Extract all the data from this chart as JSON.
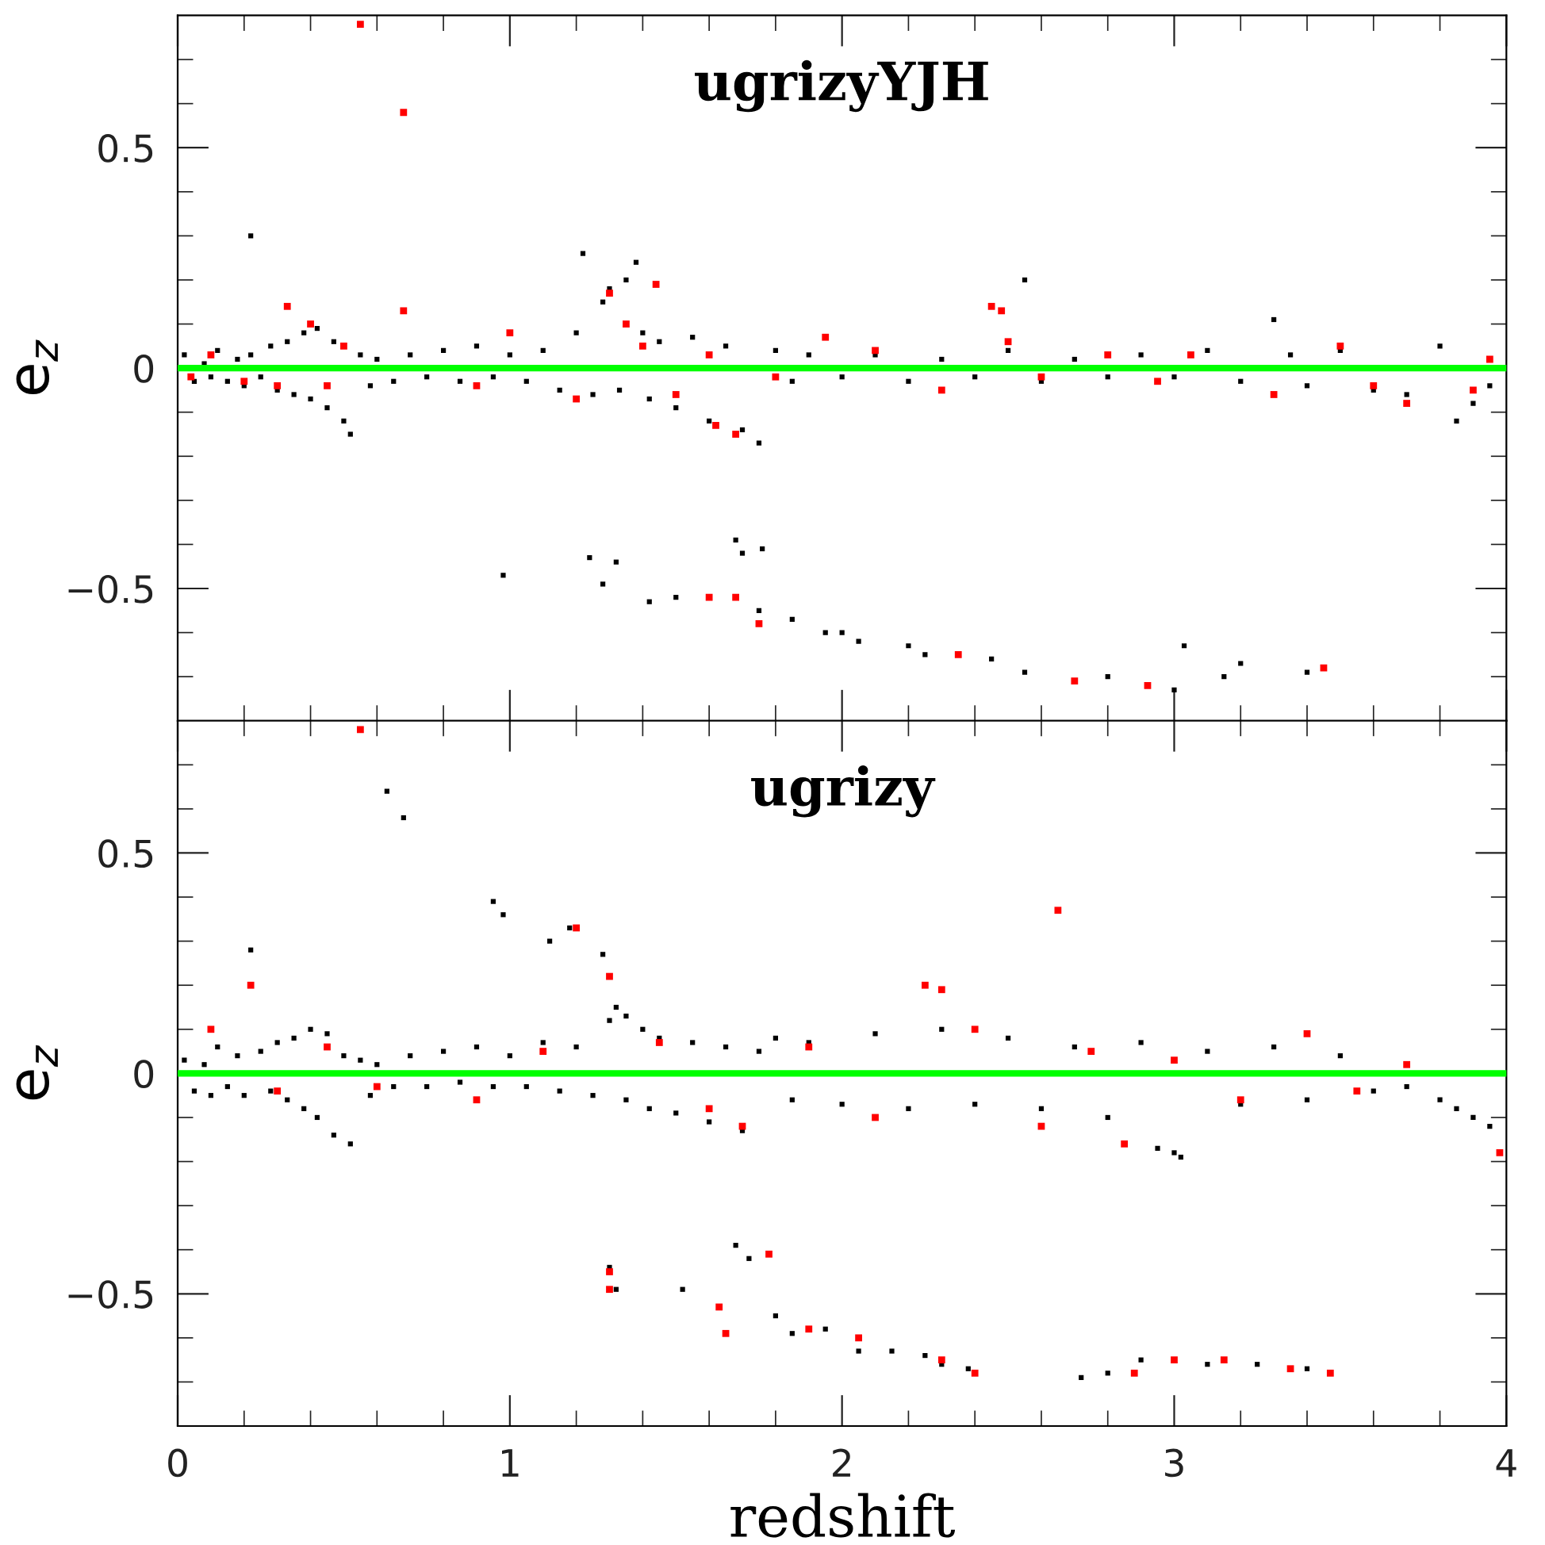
{
  "chart_data": [
    {
      "type": "scatter",
      "title": "ugrizyYJH",
      "ylabel": "e$_{z}$",
      "xlim": [
        0,
        4
      ],
      "ylim": [
        -0.8,
        0.8
      ],
      "xticks": [
        0,
        {
          "value": 0.2,
          "label": null
        },
        {
          "value": 0.4,
          "label": null
        },
        {
          "value": 0.6,
          "label": null
        },
        {
          "value": 0.8,
          "label": null
        },
        1,
        {
          "value": 1.2,
          "label": null
        },
        {
          "value": 1.4,
          "label": null
        },
        {
          "value": 1.6,
          "label": null
        },
        {
          "value": 1.8,
          "label": null
        },
        2,
        {
          "value": 2.2,
          "label": null
        },
        {
          "value": 2.4,
          "label": null
        },
        {
          "value": 2.6,
          "label": null
        },
        {
          "value": 2.8,
          "label": null
        },
        3,
        {
          "value": 3.2,
          "label": null
        },
        {
          "value": 3.4,
          "label": null
        },
        {
          "value": 3.6,
          "label": null
        },
        {
          "value": 3.8,
          "label": null
        },
        4
      ],
      "yticks": [
        {
          "value": -0.7,
          "label": null
        },
        {
          "value": -0.6,
          "label": null
        },
        {
          "value": -0.5,
          "label": "−0.5"
        },
        {
          "value": -0.4,
          "label": null
        },
        {
          "value": -0.3,
          "label": null
        },
        {
          "value": -0.2,
          "label": null
        },
        {
          "value": -0.1,
          "label": null
        },
        0,
        {
          "value": 0.1,
          "label": null
        },
        {
          "value": 0.2,
          "label": null
        },
        {
          "value": 0.3,
          "label": null
        },
        {
          "value": 0.4,
          "label": null
        },
        0.5,
        {
          "value": 0.6,
          "label": null
        },
        {
          "value": 0.7,
          "label": null
        }
      ],
      "tick_labels": "y",
      "marker": "square",
      "grid": false,
      "legend": false,
      "ref_lines": [
        {
          "axis": "y",
          "value": 0,
          "label": null,
          "color": "#00ff00"
        }
      ],
      "series": [
        {
          "color": "#000000",
          "x": [
            0.02,
            0.05,
            0.08,
            0.1,
            0.12,
            0.15,
            0.18,
            0.2,
            0.22,
            0.25,
            0.28,
            0.3,
            0.33,
            0.35,
            0.38,
            0.4,
            0.42,
            0.45,
            0.47,
            0.5,
            0.52,
            0.55,
            0.58,
            0.6,
            0.65,
            0.7,
            0.75,
            0.8,
            0.85,
            0.9,
            0.95,
            1.0,
            1.05,
            1.1,
            1.15,
            1.2,
            1.22,
            1.25,
            1.28,
            1.3,
            1.33,
            1.35,
            1.38,
            1.4,
            1.42,
            1.45,
            1.5,
            1.55,
            1.6,
            1.65,
            1.7,
            1.75,
            1.8,
            1.85,
            1.9,
            2.0,
            2.1,
            2.2,
            2.3,
            2.4,
            2.5,
            2.55,
            2.6,
            2.7,
            2.8,
            2.9,
            3.0,
            3.1,
            3.2,
            3.3,
            3.35,
            3.4,
            3.5,
            3.6,
            3.7,
            3.8,
            3.85,
            3.9,
            3.95,
            0.22,
            0.98,
            1.24,
            1.28,
            1.32,
            1.42,
            1.5,
            1.68,
            1.7,
            1.76,
            1.75,
            1.85,
            1.95,
            2.0,
            2.05,
            2.2,
            2.25,
            2.45,
            2.55,
            2.8,
            3.0,
            3.03,
            3.15,
            3.2,
            3.4
          ],
          "values": [
            0.03,
            -0.03,
            0.01,
            -0.02,
            0.04,
            -0.03,
            0.02,
            -0.04,
            0.03,
            -0.02,
            0.05,
            -0.05,
            0.06,
            -0.06,
            0.08,
            -0.07,
            0.09,
            -0.09,
            0.06,
            -0.12,
            -0.15,
            0.03,
            -0.04,
            0.02,
            -0.03,
            0.03,
            -0.02,
            0.04,
            -0.03,
            0.05,
            -0.02,
            0.03,
            -0.03,
            0.04,
            -0.05,
            0.08,
            0.26,
            -0.06,
            0.15,
            0.18,
            -0.05,
            0.2,
            0.24,
            0.08,
            -0.07,
            0.06,
            -0.09,
            0.07,
            -0.12,
            0.05,
            -0.14,
            -0.17,
            0.04,
            -0.03,
            0.03,
            -0.02,
            0.03,
            -0.03,
            0.02,
            -0.02,
            0.04,
            0.2,
            -0.03,
            0.02,
            -0.02,
            0.03,
            -0.02,
            0.04,
            -0.03,
            0.11,
            0.03,
            -0.04,
            0.04,
            -0.05,
            -0.06,
            0.05,
            -0.12,
            -0.08,
            -0.04,
            0.3,
            -0.47,
            -0.43,
            -0.49,
            -0.44,
            -0.53,
            -0.52,
            -0.39,
            -0.42,
            -0.41,
            -0.55,
            -0.57,
            -0.6,
            -0.6,
            -0.62,
            -0.63,
            -0.65,
            -0.66,
            -0.69,
            -0.7,
            -0.73,
            -0.63,
            -0.7,
            -0.67,
            -0.69
          ]
        },
        {
          "color": "#ff0000",
          "x": [
            0.55,
            0.68,
            0.68,
            0.33,
            0.4,
            0.45,
            0.1,
            0.2,
            0.5,
            0.3,
            0.9,
            1.0,
            1.2,
            1.3,
            1.35,
            1.4,
            1.44,
            1.5,
            1.6,
            1.62,
            1.68,
            1.8,
            1.95,
            2.1,
            2.3,
            2.5,
            2.6,
            2.45,
            2.48,
            2.8,
            2.95,
            3.05,
            3.3,
            3.5,
            3.6,
            3.7,
            3.9,
            3.95,
            1.6,
            1.68,
            1.75,
            2.35,
            2.7,
            2.92,
            3.45,
            0.04
          ],
          "values": [
            0.78,
            0.58,
            0.13,
            0.14,
            0.1,
            -0.04,
            0.03,
            -0.03,
            0.05,
            -0.04,
            -0.04,
            0.08,
            -0.07,
            0.17,
            0.1,
            0.05,
            0.19,
            -0.06,
            0.03,
            -0.13,
            -0.15,
            -0.02,
            0.07,
            0.04,
            -0.05,
            0.06,
            -0.02,
            0.14,
            0.13,
            0.03,
            -0.03,
            0.03,
            -0.06,
            0.05,
            -0.04,
            -0.08,
            -0.05,
            0.02,
            -0.52,
            -0.52,
            -0.58,
            -0.65,
            -0.71,
            -0.72,
            -0.68,
            -0.02
          ]
        }
      ]
    },
    {
      "type": "scatter",
      "title": "ugrizy",
      "xlabel": "redshift",
      "ylabel": "e$_{z}$",
      "xlim": [
        0,
        4
      ],
      "ylim": [
        -0.8,
        0.8
      ],
      "xticks": [
        0,
        {
          "value": 0.2,
          "label": null
        },
        {
          "value": 0.4,
          "label": null
        },
        {
          "value": 0.6,
          "label": null
        },
        {
          "value": 0.8,
          "label": null
        },
        1,
        {
          "value": 1.2,
          "label": null
        },
        {
          "value": 1.4,
          "label": null
        },
        {
          "value": 1.6,
          "label": null
        },
        {
          "value": 1.8,
          "label": null
        },
        2,
        {
          "value": 2.2,
          "label": null
        },
        {
          "value": 2.4,
          "label": null
        },
        {
          "value": 2.6,
          "label": null
        },
        {
          "value": 2.8,
          "label": null
        },
        3,
        {
          "value": 3.2,
          "label": null
        },
        {
          "value": 3.4,
          "label": null
        },
        {
          "value": 3.6,
          "label": null
        },
        {
          "value": 3.8,
          "label": null
        },
        4
      ],
      "yticks": [
        {
          "value": -0.7,
          "label": null
        },
        {
          "value": -0.6,
          "label": null
        },
        {
          "value": -0.5,
          "label": "−0.5"
        },
        {
          "value": -0.4,
          "label": null
        },
        {
          "value": -0.3,
          "label": null
        },
        {
          "value": -0.2,
          "label": null
        },
        {
          "value": -0.1,
          "label": null
        },
        0,
        {
          "value": 0.1,
          "label": null
        },
        {
          "value": 0.2,
          "label": null
        },
        {
          "value": 0.3,
          "label": null
        },
        {
          "value": 0.4,
          "label": null
        },
        0.5,
        {
          "value": 0.6,
          "label": null
        },
        {
          "value": 0.7,
          "label": null
        }
      ],
      "marker": "square",
      "grid": false,
      "legend": false,
      "ref_lines": [
        {
          "axis": "y",
          "value": 0,
          "label": null,
          "color": "#00ff00"
        }
      ],
      "series": [
        {
          "color": "#000000",
          "x": [
            0.02,
            0.05,
            0.08,
            0.1,
            0.12,
            0.15,
            0.18,
            0.2,
            0.25,
            0.28,
            0.3,
            0.33,
            0.35,
            0.38,
            0.4,
            0.42,
            0.45,
            0.47,
            0.5,
            0.52,
            0.55,
            0.58,
            0.6,
            0.65,
            0.7,
            0.75,
            0.8,
            0.85,
            0.9,
            0.95,
            1.0,
            1.05,
            1.1,
            1.15,
            1.2,
            1.25,
            1.3,
            1.35,
            1.4,
            1.42,
            1.45,
            1.5,
            1.55,
            1.6,
            1.65,
            1.7,
            1.75,
            1.8,
            1.85,
            1.9,
            2.0,
            2.1,
            2.2,
            2.3,
            2.4,
            2.5,
            2.6,
            2.7,
            2.8,
            2.9,
            3.0,
            3.1,
            3.2,
            3.3,
            3.4,
            3.5,
            3.6,
            3.7,
            3.8,
            3.85,
            3.9,
            3.95,
            0.63,
            0.68,
            0.22,
            0.95,
            0.98,
            1.12,
            1.18,
            1.28,
            1.32,
            1.35,
            1.3,
            1.32,
            1.52,
            1.68,
            1.72,
            1.8,
            1.85,
            1.95,
            2.05,
            2.15,
            2.25,
            2.3,
            2.38,
            2.72,
            2.8,
            2.9,
            3.1,
            3.25,
            3.4,
            3.02,
            2.95
          ],
          "values": [
            0.03,
            -0.04,
            0.02,
            -0.05,
            0.06,
            -0.03,
            0.04,
            -0.05,
            0.05,
            -0.04,
            0.07,
            -0.06,
            0.08,
            -0.08,
            0.1,
            -0.1,
            0.09,
            -0.14,
            0.04,
            -0.16,
            0.03,
            -0.05,
            0.02,
            -0.03,
            0.04,
            -0.03,
            0.05,
            -0.02,
            0.06,
            -0.03,
            0.04,
            -0.03,
            0.07,
            -0.04,
            0.06,
            -0.05,
            0.12,
            -0.06,
            0.1,
            -0.08,
            0.08,
            -0.09,
            0.07,
            -0.11,
            0.06,
            -0.13,
            0.05,
            0.08,
            -0.06,
            0.07,
            -0.07,
            0.09,
            -0.08,
            0.1,
            -0.07,
            0.08,
            -0.08,
            0.06,
            -0.1,
            0.07,
            -0.18,
            0.05,
            -0.07,
            0.06,
            -0.06,
            0.04,
            -0.04,
            -0.03,
            -0.06,
            -0.08,
            -0.1,
            -0.12,
            0.64,
            0.58,
            0.28,
            0.39,
            0.36,
            0.3,
            0.33,
            0.27,
            0.15,
            0.13,
            -0.44,
            -0.49,
            -0.49,
            -0.39,
            -0.42,
            -0.55,
            -0.59,
            -0.58,
            -0.63,
            -0.63,
            -0.64,
            -0.66,
            -0.67,
            -0.69,
            -0.68,
            -0.65,
            -0.66,
            -0.66,
            -0.67,
            -0.19,
            -0.17
          ]
        },
        {
          "color": "#ff0000",
          "x": [
            0.55,
            0.22,
            2.65,
            1.2,
            1.3,
            2.25,
            2.3,
            0.1,
            0.3,
            0.45,
            0.6,
            0.9,
            1.1,
            1.45,
            1.6,
            1.7,
            1.9,
            2.1,
            2.4,
            2.6,
            2.75,
            2.85,
            3.0,
            3.2,
            3.4,
            3.55,
            3.7,
            3.98,
            1.3,
            1.3,
            1.63,
            1.65,
            1.78,
            1.9,
            2.05,
            2.3,
            2.4,
            2.88,
            3.0,
            3.15,
            3.35,
            3.47
          ],
          "values": [
            0.78,
            0.2,
            0.37,
            0.33,
            0.22,
            0.2,
            0.19,
            0.1,
            -0.04,
            0.06,
            -0.03,
            -0.06,
            0.05,
            0.07,
            -0.08,
            -0.12,
            0.06,
            -0.1,
            0.1,
            -0.12,
            0.05,
            -0.16,
            0.03,
            -0.06,
            0.09,
            -0.04,
            0.02,
            -0.18,
            -0.45,
            -0.49,
            -0.53,
            -0.59,
            -0.41,
            -0.58,
            -0.6,
            -0.65,
            -0.68,
            -0.68,
            -0.65,
            -0.65,
            -0.67,
            -0.68
          ]
        }
      ]
    }
  ]
}
